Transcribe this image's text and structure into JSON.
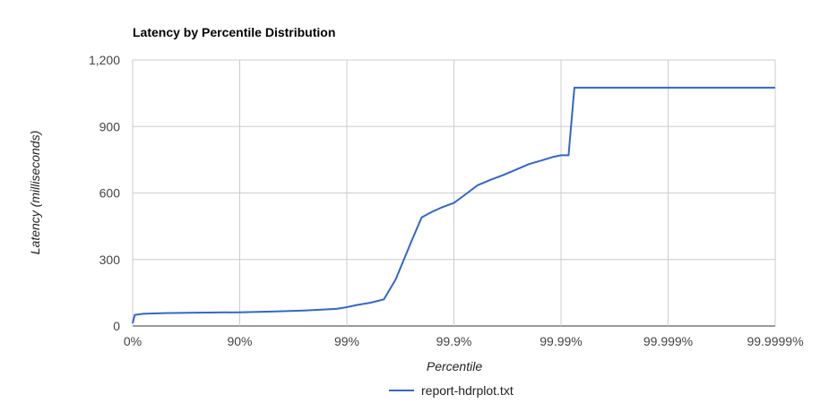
{
  "chart_data": {
    "type": "line",
    "title": "Latency by Percentile Distribution",
    "xlabel": "Percentile",
    "ylabel": "Latency (milliseconds)",
    "x_scale": "log-inverse-percentile",
    "x_ticks": [
      "0%",
      "90%",
      "99%",
      "99.9%",
      "99.99%",
      "99.999%",
      "99.9999%"
    ],
    "y_ticks": [
      "0",
      "300",
      "600",
      "900",
      "1,200"
    ],
    "ylim": [
      0,
      1200
    ],
    "xlim": [
      0,
      99.9999
    ],
    "grid": true,
    "legend_position": "bottom",
    "series": [
      {
        "name": "report-hdrplot.txt",
        "color": "#3366cc",
        "x": [
          0,
          4.5,
          20,
          50,
          75,
          90,
          95,
          97.5,
          98.75,
          99,
          99.2,
          99.4,
          99.55,
          99.65,
          99.75,
          99.8,
          99.84,
          99.87,
          99.9,
          99.92,
          99.94,
          99.955,
          99.965,
          99.975,
          99.98,
          99.985,
          99.988,
          99.99,
          99.9915,
          99.9925,
          99.993,
          99.995,
          99.999,
          99.9999
        ],
        "y": [
          12,
          50,
          55,
          58,
          60,
          62,
          65,
          70,
          77,
          85,
          95,
          105,
          120,
          210,
          380,
          490,
          515,
          535,
          555,
          590,
          635,
          660,
          680,
          710,
          730,
          748,
          762,
          770,
          770,
          1075,
          1075,
          1075,
          1075,
          1075
        ]
      }
    ]
  }
}
